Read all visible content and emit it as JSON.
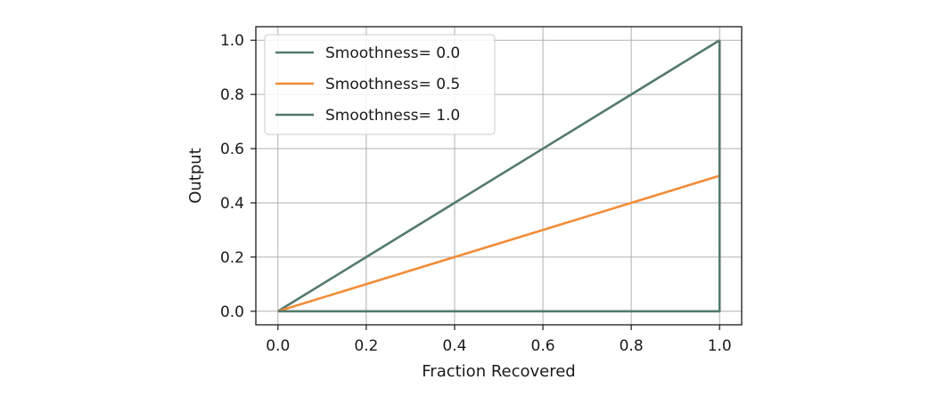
{
  "chart_data": {
    "type": "line",
    "title": "",
    "xlabel": "Fraction Recovered",
    "ylabel": "Output",
    "xlim": [
      -0.05,
      1.05
    ],
    "ylim": [
      -0.05,
      1.05
    ],
    "xticks": [
      0.0,
      0.2,
      0.4,
      0.6,
      0.8,
      1.0
    ],
    "xtick_labels": [
      "0.0",
      "0.2",
      "0.4",
      "0.6",
      "0.8",
      "1.0"
    ],
    "yticks": [
      0.0,
      0.2,
      0.4,
      0.6,
      0.8,
      1.0
    ],
    "ytick_labels": [
      "0.0",
      "0.2",
      "0.4",
      "0.6",
      "0.8",
      "1.0"
    ],
    "grid": true,
    "legend_position": "upper-left",
    "series": [
      {
        "name": "Smoothness= 0.0",
        "color": "#537a6c",
        "x": [
          0.0,
          1.0,
          1.0
        ],
        "y": [
          0.0,
          1.0,
          1.0
        ]
      },
      {
        "name": "Smoothness= 0.5",
        "color": "#f28c38",
        "x": [
          0.0,
          1.0,
          1.0
        ],
        "y": [
          0.0,
          0.5,
          1.0
        ]
      },
      {
        "name": "Smoothness= 1.0",
        "color": "#537a6c",
        "x": [
          0.0,
          1.0,
          1.0
        ],
        "y": [
          0.0,
          0.0,
          1.0
        ]
      }
    ]
  }
}
